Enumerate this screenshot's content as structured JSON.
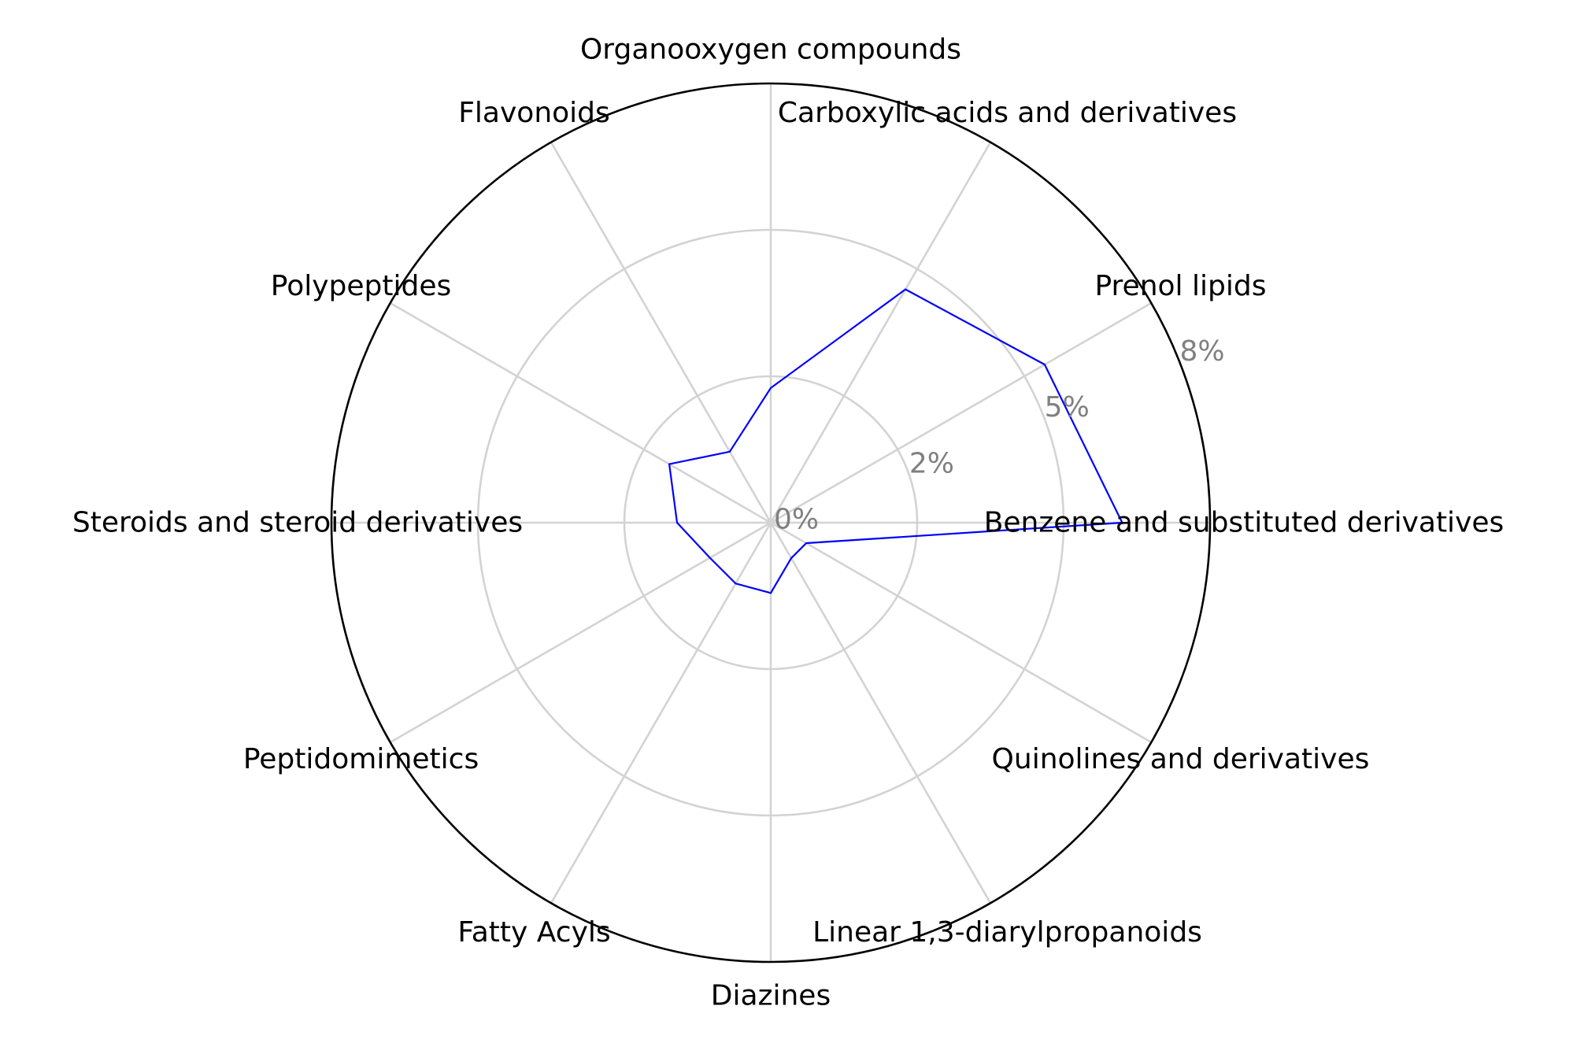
{
  "chart_data": {
    "type": "radar",
    "categories": [
      "Benzene and substituted derivatives",
      "Prenol lipids",
      "Carboxylic acids and derivatives",
      "Organooxygen compounds",
      "Flavonoids",
      "Polypeptides",
      "Steroids and steroid derivatives",
      "Peptidomimetics",
      "Fatty Acyls",
      "Diazines",
      "Linear 1,3-diarylpropanoids",
      "Quinolines and derivatives"
    ],
    "series": [
      {
        "values": [
          6.0,
          5.4,
          4.6,
          2.3,
          1.4,
          2.0,
          1.6,
          1.2,
          1.2,
          1.2,
          0.7,
          0.7
        ],
        "color": "#0000ff"
      }
    ],
    "rlim": [
      0,
      7.5
    ],
    "ticks": [
      {
        "value": 0,
        "label": "0%"
      },
      {
        "value": 2.5,
        "label": "2%"
      },
      {
        "value": 5.0,
        "label": "5%"
      },
      {
        "value": 7.5,
        "label": "8%"
      }
    ],
    "grid": true,
    "title": "",
    "xlabel": "",
    "ylabel": ""
  }
}
